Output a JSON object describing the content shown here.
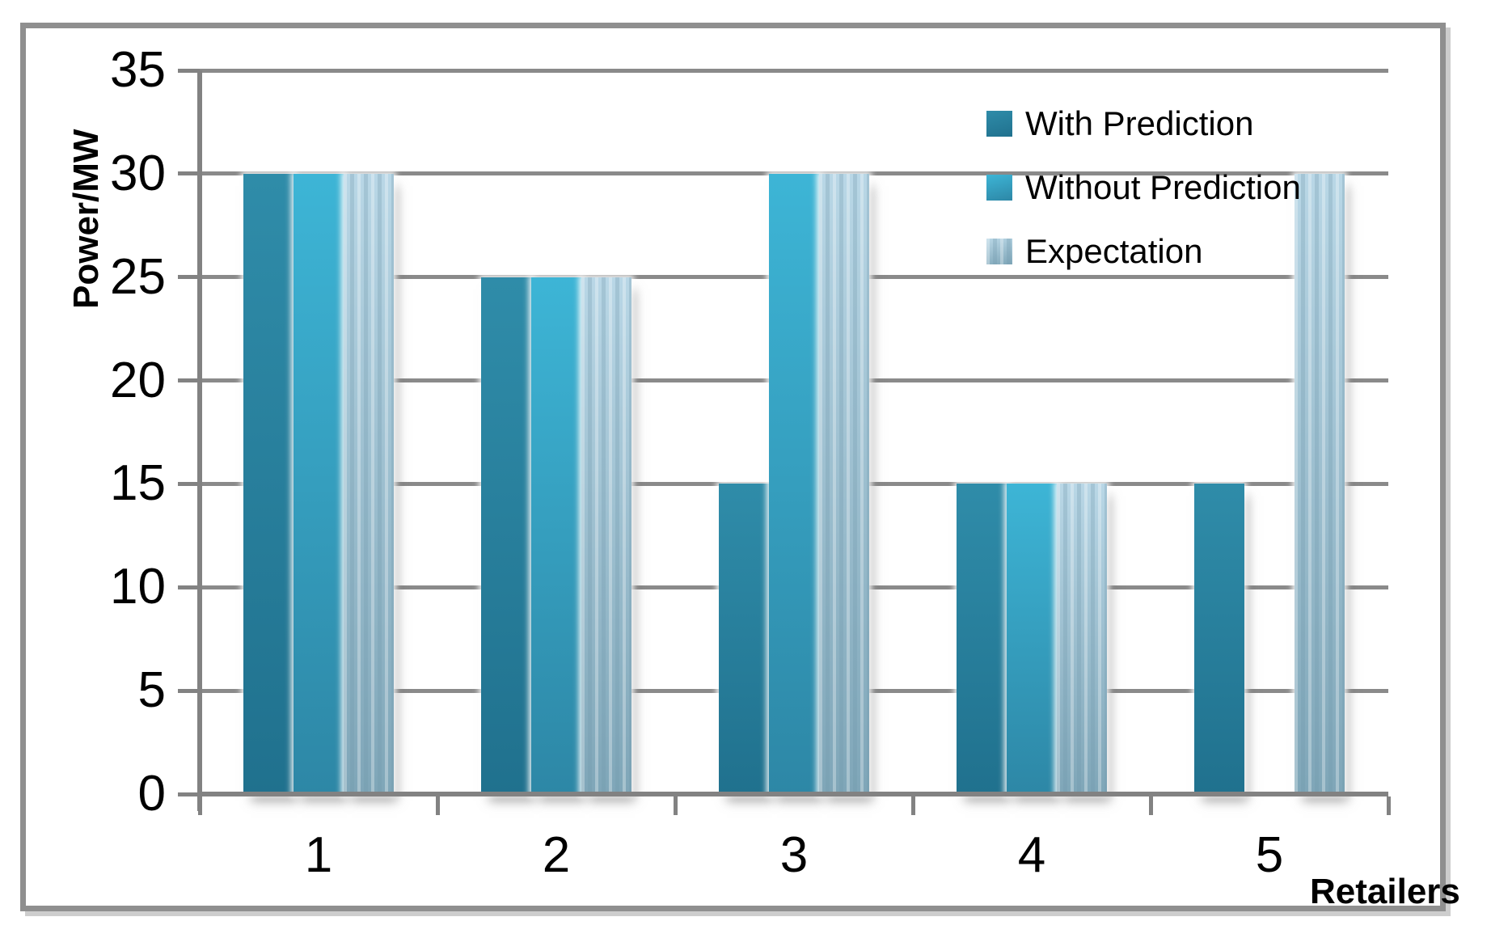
{
  "chart_data": {
    "type": "bar",
    "title": "",
    "categories": [
      "1",
      "2",
      "3",
      "4",
      "5"
    ],
    "series": [
      {
        "name": "With Prediction",
        "values": [
          30,
          25,
          15,
          15,
          15
        ],
        "color_top": "#2f8ca9",
        "color_bottom": "#20718e",
        "texture": "none"
      },
      {
        "name": "Without Prediction",
        "values": [
          30,
          25,
          30,
          15,
          0
        ],
        "color_top": "#3db5d6",
        "color_bottom": "#2d87a6",
        "texture": "none"
      },
      {
        "name": "Expectation",
        "values": [
          30,
          25,
          30,
          15,
          30
        ],
        "color_top": "#b9d7e6",
        "color_bottom": "#7fa6b8",
        "texture": "vertical-streaks"
      }
    ],
    "xlabel": "Retailers",
    "ylabel": "Power/MW",
    "ylim": [
      0,
      35
    ],
    "yticks": [
      0,
      5,
      10,
      15,
      20,
      25,
      30,
      35
    ],
    "grid": true,
    "legend_position": "top-right"
  },
  "colors": {
    "grid": "#8a8a8a",
    "axis": "#828282",
    "frame_border": "#8f8f8f",
    "text": "#000000"
  }
}
